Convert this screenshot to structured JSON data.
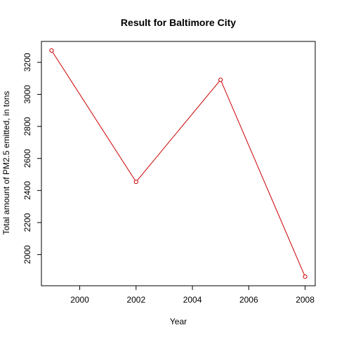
{
  "chart_data": {
    "type": "line",
    "title": "Result for Baltimore City",
    "xlabel": "Year",
    "ylabel": "Total amount of PM2.5 emitted, in tons",
    "x": [
      1999,
      2002,
      2005,
      2008
    ],
    "values": [
      3274,
      2454,
      3091,
      1862
    ],
    "xlim": [
      1999,
      2008
    ],
    "ylim": [
      1862,
      3274
    ],
    "xticks": [
      2000,
      2002,
      2004,
      2006,
      2008
    ],
    "yticks": [
      2000,
      2200,
      2400,
      2600,
      2800,
      3000,
      3200
    ],
    "line_color": "#cc0000",
    "marker": "open-circle",
    "grid": false
  }
}
